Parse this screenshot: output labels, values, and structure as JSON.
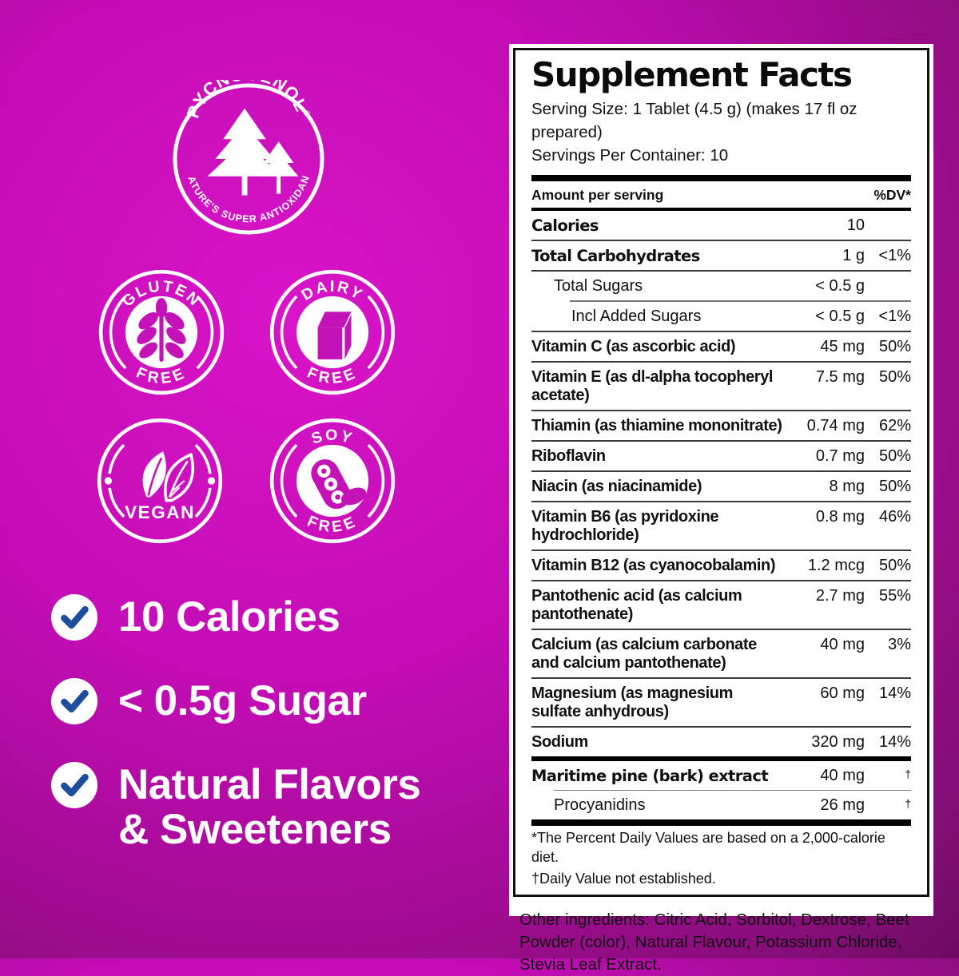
{
  "colors": {
    "background_magenta": "#c712b9",
    "background_dark": "#7e0e71",
    "accent_icon": "#c312b6",
    "check_navy": "#1c4e9c",
    "panel_text": "#111111",
    "white": "#ffffff"
  },
  "brand_logo": {
    "top_text": "PYCNOGENOL",
    "registered": "®",
    "bottom_text": "NATURE'S SUPER ANTIOXIDANT"
  },
  "badges": [
    {
      "id": "gluten-free",
      "top": "GLUTEN",
      "bottom": "FREE",
      "icon": "wheat-icon"
    },
    {
      "id": "dairy-free",
      "top": "DAIRY",
      "bottom": "FREE",
      "icon": "milk-carton-icon"
    },
    {
      "id": "vegan",
      "label": "VEGAN",
      "icon": "leaves-icon"
    },
    {
      "id": "soy-free",
      "top": "SOY",
      "bottom": "FREE",
      "icon": "soybean-icon"
    }
  ],
  "highlights": [
    {
      "lines": [
        "10 Calories"
      ]
    },
    {
      "lines": [
        "< 0.5g Sugar"
      ]
    },
    {
      "lines": [
        "Natural Flavors",
        "& Sweeteners"
      ]
    }
  ],
  "supplement_facts": {
    "title": "Supplement Facts",
    "serving_size": "Serving Size: 1 Tablet (4.5 g) (makes 17 fl oz prepared)",
    "servings_per_container": "Servings Per Container: 10",
    "col_amount": "Amount per serving",
    "col_dv": "%DV*",
    "rows": [
      {
        "lines": [
          "Calories"
        ],
        "amount": "10",
        "dv": "",
        "style": "xb",
        "indent": 0,
        "sep_after": "thin"
      },
      {
        "lines": [
          "Total Carbohydrates"
        ],
        "amount": "1 g",
        "dv": "<1%",
        "style": "xb",
        "indent": 0,
        "sep_after": "thin"
      },
      {
        "lines": [
          "Total Sugars"
        ],
        "amount": "< 0.5 g",
        "dv": "",
        "style": "sub",
        "indent": 1,
        "sep_after": "thin-ind2"
      },
      {
        "lines": [
          "Incl Added Sugars"
        ],
        "amount": "< 0.5 g",
        "dv": "<1%",
        "style": "sub",
        "indent": 2,
        "sep_after": "thin"
      },
      {
        "lines": [
          "Vitamin C (as ascorbic acid)"
        ],
        "amount": "45 mg",
        "dv": "50%",
        "style": "norm",
        "indent": 0,
        "sep_after": "thin"
      },
      {
        "lines": [
          "Vitamin E (as dl-alpha tocopheryl",
          "acetate)"
        ],
        "amount": "7.5 mg",
        "dv": "50%",
        "style": "norm",
        "indent": 0,
        "sep_after": "thin"
      },
      {
        "lines": [
          "Thiamin (as thiamine mononitrate)"
        ],
        "amount": "0.74 mg",
        "dv": "62%",
        "style": "norm",
        "indent": 0,
        "sep_after": "thin"
      },
      {
        "lines": [
          "Riboflavin"
        ],
        "amount": "0.7 mg",
        "dv": "50%",
        "style": "norm",
        "indent": 0,
        "sep_after": "thin"
      },
      {
        "lines": [
          "Niacin (as niacinamide)"
        ],
        "amount": "8 mg",
        "dv": "50%",
        "style": "norm",
        "indent": 0,
        "sep_after": "thin"
      },
      {
        "lines": [
          "Vitamin B6 (as pyridoxine",
          "hydrochloride)"
        ],
        "amount": "0.8 mg",
        "dv": "46%",
        "style": "norm",
        "indent": 0,
        "sep_after": "thin"
      },
      {
        "lines": [
          "Vitamin B12 (as cyanocobalamin)"
        ],
        "amount": "1.2 mcg",
        "dv": "50%",
        "style": "norm",
        "indent": 0,
        "sep_after": "thin"
      },
      {
        "lines": [
          "Pantothenic acid (as calcium",
          "pantothenate)"
        ],
        "amount": "2.7 mg",
        "dv": "55%",
        "style": "norm",
        "indent": 0,
        "sep_after": "thin"
      },
      {
        "lines": [
          "Calcium (as calcium carbonate",
          "and calcium pantothenate)"
        ],
        "amount": "40 mg",
        "dv": "3%",
        "style": "norm",
        "indent": 0,
        "sep_after": "thin"
      },
      {
        "lines": [
          "Magnesium (as magnesium",
          "sulfate anhydrous)"
        ],
        "amount": "60 mg",
        "dv": "14%",
        "style": "norm",
        "indent": 0,
        "sep_after": "thin"
      },
      {
        "lines": [
          "Sodium"
        ],
        "amount": "320 mg",
        "dv": "14%",
        "style": "norm",
        "indent": 0,
        "sep_after": "thick"
      },
      {
        "lines": [
          "Maritime pine (bark) extract"
        ],
        "amount": "40 mg",
        "dv": "†",
        "style": "xb",
        "indent": 0,
        "sep_after": "thin-ind1"
      },
      {
        "lines": [
          "Procyanidins"
        ],
        "amount": "26 mg",
        "dv": "†",
        "style": "sub",
        "indent": 1,
        "sep_after": "thick-lg"
      }
    ],
    "footnotes": [
      "*The Percent Daily Values are based on a 2,000-calorie diet.",
      "†Daily Value not established."
    ],
    "other_ingredients": "Other ingredients: Citric Acid, Sorbitol, Dextrose, Beet Powder (color), Natural Flavour, Potassium Chloride, Stevia Leaf Extract."
  }
}
